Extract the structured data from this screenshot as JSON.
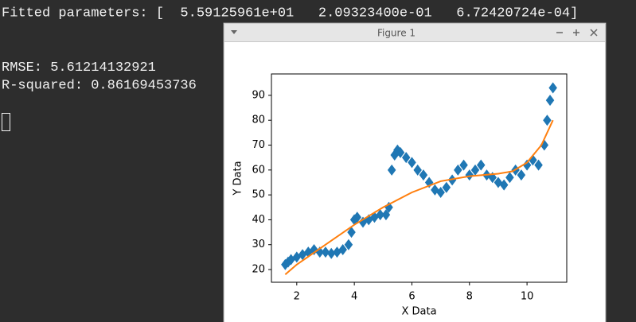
{
  "terminal": {
    "lines": [
      "Fitted parameters: [  5.59125961e+01   2.09323400e-01   6.72420724e-04]",
      "RMSE: 5.61214132921",
      "R-squared: 0.86169453736"
    ]
  },
  "window": {
    "title": "Figure 1"
  },
  "chart_data": {
    "type": "scatter",
    "xlabel": "X Data",
    "ylabel": "Y Data",
    "xlim": [
      1.12,
      11.38
    ],
    "ylim": [
      14.9,
      98.6
    ],
    "xticks": [
      2,
      4,
      6,
      8,
      10
    ],
    "yticks": [
      20,
      30,
      40,
      50,
      60,
      70,
      80,
      90
    ],
    "series": [
      {
        "type": "scatter",
        "color": "#1f77b4",
        "x": [
          1.6,
          1.7,
          1.8,
          2.0,
          2.2,
          2.4,
          2.6,
          2.8,
          3.0,
          3.2,
          3.4,
          3.6,
          3.8,
          3.9,
          4.0,
          4.1,
          4.3,
          4.5,
          4.7,
          4.9,
          5.1,
          5.2,
          5.3,
          5.4,
          5.5,
          5.6,
          5.8,
          6.0,
          6.2,
          6.4,
          6.6,
          6.8,
          7.0,
          7.2,
          7.4,
          7.6,
          7.8,
          8.0,
          8.2,
          8.4,
          8.6,
          8.8,
          9.0,
          9.2,
          9.4,
          9.6,
          9.8,
          10.0,
          10.2,
          10.4,
          10.6,
          10.7,
          10.8,
          10.9
        ],
        "values": [
          22,
          23,
          24,
          25,
          26,
          27,
          28,
          27,
          27,
          26.5,
          27,
          28,
          30,
          35,
          40,
          41,
          39,
          40,
          41,
          42,
          42,
          45,
          60,
          66,
          68,
          67,
          65,
          63,
          60,
          58,
          55,
          52,
          51,
          53,
          56,
          60,
          62,
          58,
          60,
          62,
          58,
          57,
          55,
          54,
          57,
          60,
          58,
          62,
          64,
          62,
          70,
          80,
          88,
          93
        ]
      },
      {
        "type": "line",
        "color": "#ff7f0e",
        "x": [
          1.6,
          2,
          3,
          4,
          5,
          6,
          7,
          8,
          9,
          9.5,
          10,
          10.5,
          10.9
        ],
        "values": [
          18,
          22,
          30,
          38,
          45,
          51,
          55.5,
          57.5,
          58.5,
          59.5,
          63,
          70,
          80
        ]
      }
    ]
  }
}
